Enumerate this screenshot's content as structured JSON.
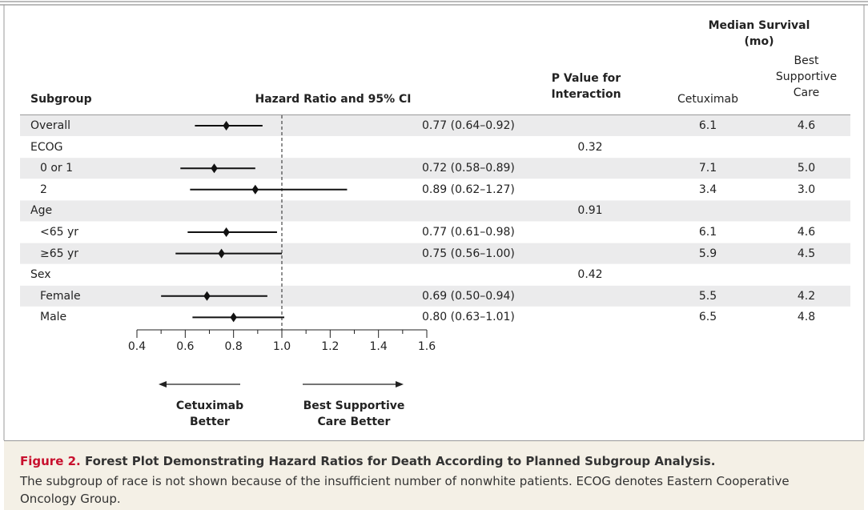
{
  "chart_data": {
    "type": "forest",
    "headers": {
      "subgroup": "Subgroup",
      "estimate": "Hazard Ratio and 95% CI",
      "p_value": "P Value for Interaction",
      "survival_group": "Median Survival (mo)",
      "survival_columns": [
        "Cetuximab",
        "Best Supportive Care"
      ]
    },
    "rows": [
      {
        "label": "Overall",
        "value": 0.77,
        "ci": [
          0.64,
          0.92
        ],
        "value_label": "0.77 (0.64–0.92)",
        "survival": [
          "6.1",
          "4.6"
        ]
      },
      {
        "label": "ECOG",
        "p_value": 0.32,
        "rows": [
          {
            "label": "0 or 1",
            "value": 0.72,
            "ci": [
              0.58,
              0.89
            ],
            "value_label": "0.72 (0.58–0.89)",
            "survival": [
              "7.1",
              "5.0"
            ]
          },
          {
            "label": "2",
            "value": 0.89,
            "ci": [
              0.62,
              1.27
            ],
            "value_label": "0.89 (0.62–1.27)",
            "survival": [
              "3.4",
              "3.0"
            ]
          }
        ]
      },
      {
        "label": "Age",
        "p_value": 0.91,
        "rows": [
          {
            "label": "<65 yr",
            "value": 0.77,
            "ci": [
              0.61,
              0.98
            ],
            "value_label": "0.77 (0.61–0.98)",
            "survival": [
              "6.1",
              "4.6"
            ]
          },
          {
            "label": "≥65 yr",
            "value": 0.75,
            "ci": [
              0.56,
              1.0
            ],
            "value_label": "0.75 (0.56–1.00)",
            "survival": [
              "5.9",
              "4.5"
            ]
          }
        ]
      },
      {
        "label": "Sex",
        "p_value": 0.42,
        "rows": [
          {
            "label": "Female",
            "value": 0.69,
            "ci": [
              0.5,
              0.94
            ],
            "value_label": "0.69 (0.50–0.94)",
            "survival": [
              "5.5",
              "4.2"
            ]
          },
          {
            "label": "Male",
            "value": 0.8,
            "ci": [
              0.63,
              1.01
            ],
            "value_label": "0.80 (0.63–1.01)",
            "survival": [
              "6.5",
              "4.8"
            ]
          }
        ]
      }
    ],
    "xlim": [
      0.4,
      1.6
    ],
    "xticks": [
      0.4,
      0.6,
      0.8,
      {
        "value": 1,
        "label": "1.0"
      },
      1.2,
      1.4,
      1.6
    ],
    "xminorticks": [
      0.5,
      0.7,
      0.9,
      1.1,
      1.3,
      1.5
    ],
    "reference": 1,
    "direction_labels": [
      "Cetuximab Better",
      "Best Supportive Care Better"
    ],
    "figure_label": "Figure 2.",
    "caption_title": "Forest Plot Demonstrating Hazard Ratios for Death According to Planned Subgroup Analysis.",
    "caption_text": "The subgroup of race is not shown because of the insufficient number of nonwhite patients. ECOG denotes Eastern Cooperative Oncology Group."
  }
}
